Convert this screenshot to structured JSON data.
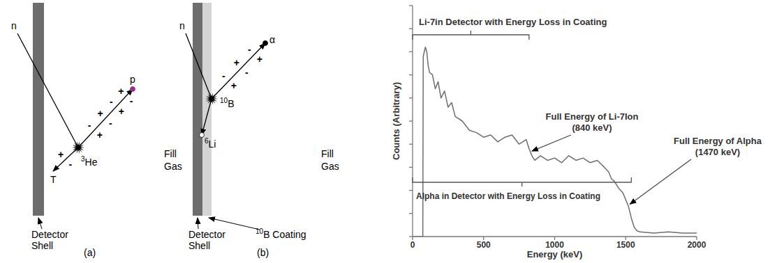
{
  "diagrams": [
    {
      "panel": "(a)",
      "neutron": "n",
      "target": {
        "mass": "3",
        "text": "He"
      },
      "products": [
        {
          "text": "p"
        },
        {
          "text": "T"
        }
      ],
      "fill_gas": "Fill Gas",
      "shell": "Detector Shell"
    },
    {
      "panel": "(b)",
      "neutron": "n",
      "target": {
        "mass": "10",
        "text": "B"
      },
      "products": [
        {
          "text": "α"
        },
        {
          "mass": "6",
          "text": "Li"
        }
      ],
      "fill_gas": "Fill Gas",
      "shell": "Detector Shell",
      "coating": {
        "mass": "10",
        "text": "B Coating"
      }
    }
  ],
  "charge_signs": [
    "+",
    "-"
  ],
  "chart_data": {
    "type": "line",
    "xlabel": "Energy (keV)",
    "ylabel": "Counts (Arbitrary)",
    "x": [
      0,
      60,
      72,
      75,
      90,
      100,
      110,
      120,
      140,
      160,
      180,
      200,
      225,
      250,
      275,
      300,
      350,
      400,
      450,
      500,
      550,
      600,
      650,
      700,
      750,
      800,
      820,
      840,
      860,
      900,
      950,
      1000,
      1050,
      1100,
      1150,
      1200,
      1250,
      1300,
      1350,
      1380,
      1400,
      1420,
      1450,
      1480,
      1500,
      1520,
      1540,
      1560,
      1580,
      1600,
      1700,
      1800,
      1900,
      2000
    ],
    "values": [
      0,
      0,
      0,
      7.8,
      8.2,
      8.0,
      7.4,
      7.1,
      7.0,
      6.4,
      6.7,
      6.0,
      6.3,
      5.6,
      5.8,
      5.2,
      5.0,
      4.6,
      4.5,
      4.3,
      4.4,
      4.1,
      4.3,
      4.4,
      4.0,
      4.2,
      3.8,
      3.5,
      3.3,
      3.5,
      3.3,
      3.4,
      3.2,
      3.5,
      3.3,
      3.4,
      3.2,
      3.3,
      3.0,
      2.8,
      2.5,
      2.4,
      2.1,
      1.9,
      1.6,
      1.3,
      0.8,
      0.4,
      0.25,
      0.2,
      0.15,
      0.2,
      0.15,
      0.15
    ],
    "color": "#6e6e6e",
    "xlim": [
      0,
      2000
    ],
    "xticks": [
      0,
      500,
      1000,
      1500,
      2000
    ],
    "ylim": [
      0,
      10
    ],
    "yticks": [
      0,
      1,
      2,
      3,
      4,
      5,
      6,
      7,
      8,
      9,
      10
    ],
    "tick_labels": "x",
    "grid": false,
    "annotations": [
      {
        "text": "Li-7in Detector with Energy Loss in Coating",
        "range": [
          0,
          820
        ]
      },
      {
        "text": "Alpha in Detector with Energy Loss in Coating",
        "range": [
          0,
          1540
        ]
      },
      {
        "text": "Full Energy of Li-7Ion (840 keV)",
        "x": 840,
        "y": 3.7
      },
      {
        "text": "Full Energy of Alpha (1470 keV)",
        "x": 1530,
        "y": 1.4
      }
    ]
  }
}
